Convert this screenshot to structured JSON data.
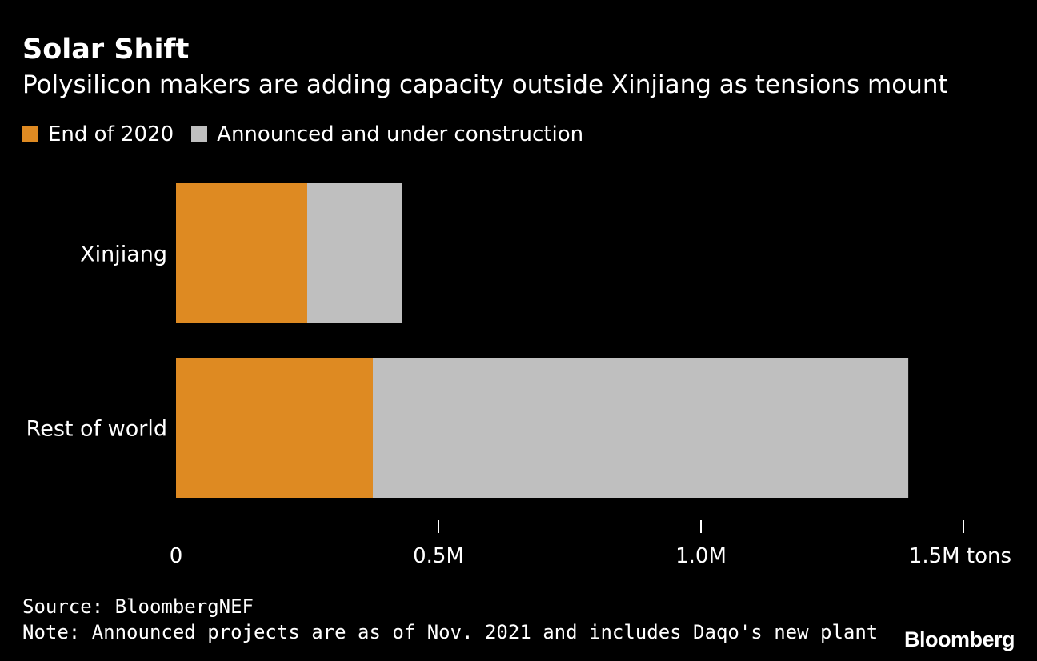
{
  "header": {
    "title": "Solar Shift",
    "subtitle": "Polysilicon makers are adding capacity outside Xinjiang as tensions mount"
  },
  "legend": {
    "items": [
      {
        "label": "End of 2020",
        "color": "#de8a22"
      },
      {
        "label": "Announced and under construction",
        "color": "#bfbfbf"
      }
    ]
  },
  "chart_data": {
    "type": "bar",
    "orientation": "horizontal",
    "stacked": true,
    "categories": [
      "Xinjiang",
      "Rest of world"
    ],
    "series": [
      {
        "name": "End of 2020",
        "color": "#de8a22",
        "values": [
          0.25,
          0.375
        ]
      },
      {
        "name": "Announced and under construction",
        "color": "#bfbfbf",
        "values": [
          0.18,
          1.02
        ]
      }
    ],
    "xlim": [
      0,
      1.5
    ],
    "ticks": [
      {
        "value": 0,
        "label": "0"
      },
      {
        "value": 0.5,
        "label": "0.5M"
      },
      {
        "value": 1.0,
        "label": "1.0M"
      },
      {
        "value": 1.5,
        "label": "1.5M tons"
      }
    ],
    "unit": "M tons",
    "title": "Solar Shift",
    "xlabel": "",
    "ylabel": ""
  },
  "footer": {
    "source": "Source: BloombergNEF",
    "note": "Note: Announced projects are as of Nov. 2021 and includes Daqo's new plant"
  },
  "brand": {
    "logo": "Bloomberg"
  }
}
